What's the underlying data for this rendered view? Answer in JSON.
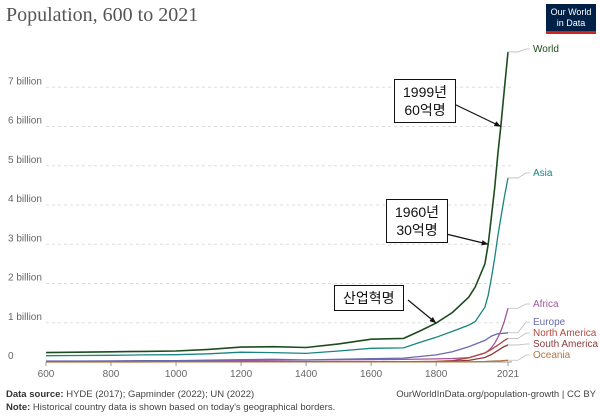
{
  "header": {
    "title": "Population, 600 to 2021",
    "logo_line1": "Our World",
    "logo_line2": "in Data"
  },
  "colors": {
    "World": "#1d4d1d",
    "Asia": "#18867e",
    "Africa": "#a2559c",
    "Europe": "#6a6ab0",
    "North America": "#b5473d",
    "South America": "#8c3a3a",
    "Oceania": "#b07840",
    "grid": "#dddddd",
    "axis": "#999999"
  },
  "chart_data": {
    "type": "line",
    "title": "Population, 600 to 2021",
    "xlim": [
      600,
      2021
    ],
    "ylim": [
      0,
      8000000000
    ],
    "x_ticks": [
      600,
      800,
      1000,
      1200,
      1400,
      1600,
      1800,
      2021
    ],
    "y_ticks": [
      {
        "value": 0,
        "label": "0"
      },
      {
        "value": 1000000000,
        "label": "1 billion"
      },
      {
        "value": 2000000000,
        "label": "2 billion"
      },
      {
        "value": 3000000000,
        "label": "3 billion"
      },
      {
        "value": 4000000000,
        "label": "4 billion"
      },
      {
        "value": 5000000000,
        "label": "5 billion"
      },
      {
        "value": 6000000000,
        "label": "6 billion"
      },
      {
        "value": 7000000000,
        "label": "7 billion"
      }
    ],
    "series": [
      {
        "name": "World",
        "points": [
          [
            600,
            240000000
          ],
          [
            700,
            250000000
          ],
          [
            800,
            260000000
          ],
          [
            900,
            270000000
          ],
          [
            1000,
            280000000
          ],
          [
            1100,
            320000000
          ],
          [
            1200,
            380000000
          ],
          [
            1300,
            390000000
          ],
          [
            1400,
            370000000
          ],
          [
            1500,
            460000000
          ],
          [
            1600,
            580000000
          ],
          [
            1700,
            600000000
          ],
          [
            1750,
            790000000
          ],
          [
            1800,
            990000000
          ],
          [
            1850,
            1260000000
          ],
          [
            1900,
            1650000000
          ],
          [
            1920,
            1910000000
          ],
          [
            1950,
            2500000000
          ],
          [
            1960,
            3000000000
          ],
          [
            1970,
            3700000000
          ],
          [
            1980,
            4440000000
          ],
          [
            1990,
            5310000000
          ],
          [
            1999,
            6000000000
          ],
          [
            2010,
            6960000000
          ],
          [
            2021,
            7900000000
          ]
        ]
      },
      {
        "name": "Asia",
        "points": [
          [
            600,
            160000000
          ],
          [
            700,
            165000000
          ],
          [
            800,
            170000000
          ],
          [
            900,
            180000000
          ],
          [
            1000,
            185000000
          ],
          [
            1100,
            210000000
          ],
          [
            1200,
            250000000
          ],
          [
            1300,
            240000000
          ],
          [
            1400,
            220000000
          ],
          [
            1500,
            280000000
          ],
          [
            1600,
            350000000
          ],
          [
            1700,
            360000000
          ],
          [
            1750,
            500000000
          ],
          [
            1800,
            630000000
          ],
          [
            1850,
            780000000
          ],
          [
            1900,
            940000000
          ],
          [
            1920,
            1030000000
          ],
          [
            1950,
            1400000000
          ],
          [
            1960,
            1700000000
          ],
          [
            1970,
            2140000000
          ],
          [
            1980,
            2650000000
          ],
          [
            1990,
            3220000000
          ],
          [
            2000,
            3730000000
          ],
          [
            2010,
            4210000000
          ],
          [
            2021,
            4690000000
          ]
        ]
      },
      {
        "name": "Africa",
        "points": [
          [
            600,
            20000000
          ],
          [
            700,
            22000000
          ],
          [
            800,
            24000000
          ],
          [
            900,
            26000000
          ],
          [
            1000,
            30000000
          ],
          [
            1200,
            40000000
          ],
          [
            1400,
            50000000
          ],
          [
            1600,
            60000000
          ],
          [
            1700,
            65000000
          ],
          [
            1800,
            80000000
          ],
          [
            1850,
            90000000
          ],
          [
            1900,
            110000000
          ],
          [
            1950,
            230000000
          ],
          [
            1960,
            285000000
          ],
          [
            1970,
            365000000
          ],
          [
            1980,
            480000000
          ],
          [
            1990,
            630000000
          ],
          [
            2000,
            810000000
          ],
          [
            2010,
            1040000000
          ],
          [
            2021,
            1370000000
          ]
        ]
      },
      {
        "name": "Europe",
        "points": [
          [
            600,
            25000000
          ],
          [
            700,
            25000000
          ],
          [
            800,
            28000000
          ],
          [
            900,
            32000000
          ],
          [
            1000,
            36000000
          ],
          [
            1200,
            58000000
          ],
          [
            1300,
            70000000
          ],
          [
            1400,
            52000000
          ],
          [
            1500,
            68000000
          ],
          [
            1600,
            85000000
          ],
          [
            1700,
            100000000
          ],
          [
            1800,
            180000000
          ],
          [
            1850,
            260000000
          ],
          [
            1900,
            390000000
          ],
          [
            1950,
            550000000
          ],
          [
            1970,
            660000000
          ],
          [
            1990,
            720000000
          ],
          [
            2000,
            725000000
          ],
          [
            2010,
            735000000
          ],
          [
            2021,
            745000000
          ]
        ]
      },
      {
        "name": "North America",
        "points": [
          [
            600,
            5000000
          ],
          [
            1000,
            6000000
          ],
          [
            1400,
            8000000
          ],
          [
            1500,
            9000000
          ],
          [
            1600,
            7000000
          ],
          [
            1700,
            5000000
          ],
          [
            1800,
            15000000
          ],
          [
            1850,
            35000000
          ],
          [
            1900,
            105000000
          ],
          [
            1950,
            230000000
          ],
          [
            1970,
            320000000
          ],
          [
            1990,
            430000000
          ],
          [
            2000,
            490000000
          ],
          [
            2010,
            550000000
          ],
          [
            2021,
            600000000
          ]
        ]
      },
      {
        "name": "South America",
        "points": [
          [
            600,
            5000000
          ],
          [
            1000,
            6000000
          ],
          [
            1400,
            9000000
          ],
          [
            1500,
            11000000
          ],
          [
            1600,
            8000000
          ],
          [
            1700,
            7000000
          ],
          [
            1800,
            12000000
          ],
          [
            1850,
            20000000
          ],
          [
            1900,
            40000000
          ],
          [
            1950,
            115000000
          ],
          [
            1970,
            190000000
          ],
          [
            1990,
            295000000
          ],
          [
            2000,
            350000000
          ],
          [
            2010,
            395000000
          ],
          [
            2021,
            435000000
          ]
        ]
      },
      {
        "name": "Oceania",
        "points": [
          [
            600,
            1000000
          ],
          [
            1000,
            1500000
          ],
          [
            1600,
            2000000
          ],
          [
            1800,
            2000000
          ],
          [
            1900,
            6000000
          ],
          [
            1950,
            12700000
          ],
          [
            1970,
            19700000
          ],
          [
            1990,
            27000000
          ],
          [
            2000,
            31000000
          ],
          [
            2010,
            37000000
          ],
          [
            2021,
            44000000
          ]
        ]
      }
    ],
    "annotations": [
      {
        "line1": "1999년",
        "line2": "60억명",
        "target_x": 1999,
        "target_y": 6000000000
      },
      {
        "line1": "1960년",
        "line2": "30억명",
        "target_x": 1960,
        "target_y": 3000000000
      },
      {
        "line1": "산업혁명",
        "line2": "",
        "target_x": 1800,
        "target_y": 990000000
      }
    ]
  },
  "footer": {
    "source_label": "Data source:",
    "source_text": "HYDE (2017); Gapminder (2022); UN (2022)",
    "url": "OurWorldInData.org/population-growth | CC BY",
    "note_label": "Note:",
    "note_text": "Historical country data is shown based on today's geographical borders."
  }
}
